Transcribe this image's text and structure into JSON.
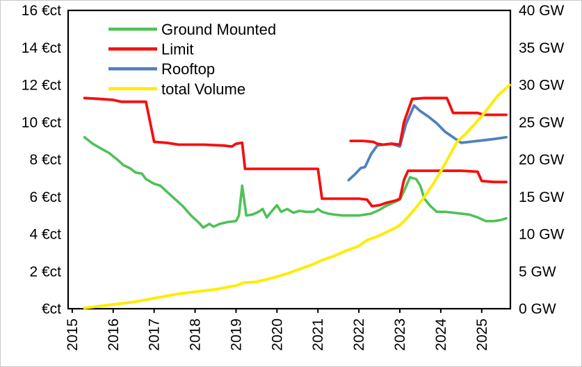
{
  "chart_data": {
    "type": "line",
    "title": "",
    "x_axis": {
      "min": 2014.9,
      "max": 2025.7,
      "ticks": [
        [
          2015,
          "2015"
        ],
        [
          2016,
          "2016"
        ],
        [
          2017,
          "2017"
        ],
        [
          2018,
          "2018"
        ],
        [
          2019,
          "2019"
        ],
        [
          2020,
          "2020"
        ],
        [
          2021,
          "2021"
        ],
        [
          2022,
          "2022"
        ],
        [
          2023,
          "2023"
        ],
        [
          2024,
          "2024"
        ],
        [
          2025,
          "2025"
        ]
      ]
    },
    "y_left": {
      "min": 0,
      "max": 16,
      "unit": "€ct",
      "ticks": [
        [
          0,
          "€ct"
        ],
        [
          2,
          "2 €ct"
        ],
        [
          4,
          "4 €ct"
        ],
        [
          6,
          "6 €ct"
        ],
        [
          8,
          "8 €ct"
        ],
        [
          10,
          "10 €ct"
        ],
        [
          12,
          "12 €ct"
        ],
        [
          14,
          "14 €ct"
        ],
        [
          16,
          "16 €ct"
        ]
      ]
    },
    "y_right": {
      "min": 0,
      "max": 40,
      "unit": "GW",
      "ticks": [
        [
          0,
          "0 GW"
        ],
        [
          5,
          "5 GW"
        ],
        [
          10,
          "10 GW"
        ],
        [
          15,
          "15 GW"
        ],
        [
          20,
          "20 GW"
        ],
        [
          25,
          "25 GW"
        ],
        [
          30,
          "30 GW"
        ],
        [
          35,
          "35 GW"
        ],
        [
          40,
          "40 GW"
        ]
      ]
    },
    "legend": [
      {
        "label": "Ground Mounted",
        "color": "#4ec157"
      },
      {
        "label": " Limit",
        "color": "#f50f0f"
      },
      {
        "label": "Rooftop",
        "color": "#4f81bd"
      },
      {
        "label": "total Volume",
        "color": "#ffec00"
      }
    ],
    "series": [
      {
        "name": "ground-mounted",
        "axis": "left",
        "color": "#4ec157",
        "width": 3.6,
        "points": [
          [
            2015.3,
            9.2
          ],
          [
            2015.5,
            8.85
          ],
          [
            2015.7,
            8.6
          ],
          [
            2015.9,
            8.35
          ],
          [
            2016.1,
            8.0
          ],
          [
            2016.25,
            7.7
          ],
          [
            2016.4,
            7.55
          ],
          [
            2016.55,
            7.3
          ],
          [
            2016.7,
            7.25
          ],
          [
            2016.8,
            6.95
          ],
          [
            2017.0,
            6.7
          ],
          [
            2017.15,
            6.6
          ],
          [
            2017.3,
            6.3
          ],
          [
            2017.5,
            5.9
          ],
          [
            2017.7,
            5.5
          ],
          [
            2017.9,
            5.0
          ],
          [
            2018.1,
            4.6
          ],
          [
            2018.2,
            4.35
          ],
          [
            2018.35,
            4.55
          ],
          [
            2018.45,
            4.4
          ],
          [
            2018.6,
            4.55
          ],
          [
            2018.8,
            4.65
          ],
          [
            2019.0,
            4.7
          ],
          [
            2019.07,
            5.0
          ],
          [
            2019.15,
            6.6
          ],
          [
            2019.25,
            5.0
          ],
          [
            2019.4,
            5.05
          ],
          [
            2019.55,
            5.2
          ],
          [
            2019.65,
            5.35
          ],
          [
            2019.75,
            4.9
          ],
          [
            2019.9,
            5.3
          ],
          [
            2020.0,
            5.55
          ],
          [
            2020.1,
            5.2
          ],
          [
            2020.25,
            5.35
          ],
          [
            2020.4,
            5.15
          ],
          [
            2020.55,
            5.25
          ],
          [
            2020.7,
            5.2
          ],
          [
            2020.9,
            5.2
          ],
          [
            2021.0,
            5.35
          ],
          [
            2021.1,
            5.2
          ],
          [
            2021.25,
            5.1
          ],
          [
            2021.4,
            5.05
          ],
          [
            2021.6,
            5.0
          ],
          [
            2021.8,
            5.0
          ],
          [
            2022.0,
            5.0
          ],
          [
            2022.15,
            5.05
          ],
          [
            2022.3,
            5.1
          ],
          [
            2022.5,
            5.3
          ],
          [
            2022.65,
            5.5
          ],
          [
            2022.8,
            5.65
          ],
          [
            2023.0,
            5.85
          ],
          [
            2023.1,
            6.3
          ],
          [
            2023.25,
            7.05
          ],
          [
            2023.4,
            6.95
          ],
          [
            2023.5,
            6.6
          ],
          [
            2023.6,
            5.9
          ],
          [
            2023.75,
            5.5
          ],
          [
            2023.9,
            5.2
          ],
          [
            2024.1,
            5.2
          ],
          [
            2024.3,
            5.15
          ],
          [
            2024.5,
            5.1
          ],
          [
            2024.7,
            5.05
          ],
          [
            2024.9,
            4.9
          ],
          [
            2025.1,
            4.7
          ],
          [
            2025.3,
            4.7
          ],
          [
            2025.45,
            4.75
          ],
          [
            2025.6,
            4.85
          ]
        ]
      },
      {
        "name": "limit-ground",
        "axis": "left",
        "color": "#f50f0f",
        "width": 3.8,
        "points": [
          [
            2015.3,
            11.3
          ],
          [
            2015.7,
            11.25
          ],
          [
            2016.0,
            11.2
          ],
          [
            2016.2,
            11.1
          ],
          [
            2016.8,
            11.1
          ],
          [
            2017.0,
            8.95
          ],
          [
            2017.3,
            8.9
          ],
          [
            2017.6,
            8.8
          ],
          [
            2018.2,
            8.8
          ],
          [
            2018.7,
            8.75
          ],
          [
            2018.9,
            8.7
          ],
          [
            2019.0,
            8.85
          ],
          [
            2019.15,
            8.9
          ],
          [
            2019.22,
            7.5
          ],
          [
            2019.6,
            7.5
          ],
          [
            2020.3,
            7.5
          ],
          [
            2021.0,
            7.5
          ],
          [
            2021.1,
            5.9
          ],
          [
            2021.5,
            5.9
          ],
          [
            2022.0,
            5.9
          ],
          [
            2022.2,
            5.85
          ],
          [
            2022.32,
            5.5
          ],
          [
            2022.5,
            5.55
          ],
          [
            2022.7,
            5.7
          ],
          [
            2022.9,
            5.8
          ],
          [
            2023.0,
            5.9
          ],
          [
            2023.1,
            6.9
          ],
          [
            2023.2,
            7.4
          ],
          [
            2023.6,
            7.4
          ],
          [
            2024.0,
            7.4
          ],
          [
            2024.5,
            7.4
          ],
          [
            2024.9,
            7.35
          ],
          [
            2025.0,
            6.85
          ],
          [
            2025.3,
            6.8
          ],
          [
            2025.6,
            6.8
          ]
        ]
      },
      {
        "name": "rooftop",
        "axis": "left",
        "color": "#4f81bd",
        "width": 3.8,
        "points": [
          [
            2021.75,
            6.9
          ],
          [
            2021.9,
            7.2
          ],
          [
            2022.05,
            7.55
          ],
          [
            2022.15,
            7.6
          ],
          [
            2022.3,
            8.3
          ],
          [
            2022.45,
            8.75
          ],
          [
            2022.6,
            8.8
          ],
          [
            2022.8,
            8.85
          ],
          [
            2023.0,
            8.7
          ],
          [
            2023.15,
            9.9
          ],
          [
            2023.35,
            10.9
          ],
          [
            2023.5,
            10.6
          ],
          [
            2023.7,
            10.3
          ],
          [
            2023.9,
            9.95
          ],
          [
            2024.1,
            9.5
          ],
          [
            2024.3,
            9.2
          ],
          [
            2024.5,
            8.9
          ],
          [
            2024.7,
            8.95
          ],
          [
            2024.9,
            9.0
          ],
          [
            2025.1,
            9.05
          ],
          [
            2025.3,
            9.1
          ],
          [
            2025.45,
            9.15
          ],
          [
            2025.6,
            9.2
          ]
        ]
      },
      {
        "name": "limit-rooftop",
        "axis": "left",
        "color": "#f50f0f",
        "width": 3.8,
        "points": [
          [
            2021.8,
            9.0
          ],
          [
            2022.1,
            9.0
          ],
          [
            2022.35,
            8.95
          ],
          [
            2022.45,
            8.85
          ],
          [
            2022.6,
            8.8
          ],
          [
            2022.8,
            8.85
          ],
          [
            2023.0,
            8.8
          ],
          [
            2023.1,
            10.0
          ],
          [
            2023.3,
            11.25
          ],
          [
            2023.6,
            11.3
          ],
          [
            2024.0,
            11.3
          ],
          [
            2024.15,
            11.3
          ],
          [
            2024.3,
            10.5
          ],
          [
            2024.6,
            10.5
          ],
          [
            2024.9,
            10.5
          ],
          [
            2025.05,
            10.4
          ],
          [
            2025.3,
            10.4
          ],
          [
            2025.6,
            10.4
          ]
        ]
      },
      {
        "name": "total-volume",
        "axis": "right",
        "color": "#ffec00",
        "width": 4.0,
        "points": [
          [
            2015.3,
            0.1
          ],
          [
            2015.6,
            0.3
          ],
          [
            2015.9,
            0.5
          ],
          [
            2016.2,
            0.7
          ],
          [
            2016.5,
            0.9
          ],
          [
            2016.8,
            1.2
          ],
          [
            2017.0,
            1.4
          ],
          [
            2017.3,
            1.7
          ],
          [
            2017.6,
            2.0
          ],
          [
            2017.9,
            2.2
          ],
          [
            2018.2,
            2.4
          ],
          [
            2018.5,
            2.6
          ],
          [
            2018.8,
            2.9
          ],
          [
            2019.0,
            3.1
          ],
          [
            2019.2,
            3.5
          ],
          [
            2019.5,
            3.6
          ],
          [
            2019.8,
            4.0
          ],
          [
            2020.0,
            4.3
          ],
          [
            2020.3,
            4.8
          ],
          [
            2020.6,
            5.4
          ],
          [
            2020.9,
            6.0
          ],
          [
            2021.1,
            6.5
          ],
          [
            2021.4,
            7.1
          ],
          [
            2021.7,
            7.8
          ],
          [
            2022.0,
            8.4
          ],
          [
            2022.2,
            9.2
          ],
          [
            2022.5,
            9.8
          ],
          [
            2022.8,
            10.6
          ],
          [
            2023.0,
            11.2
          ],
          [
            2023.2,
            12.3
          ],
          [
            2023.4,
            13.6
          ],
          [
            2023.6,
            15.0
          ],
          [
            2023.8,
            16.6
          ],
          [
            2024.0,
            18.4
          ],
          [
            2024.2,
            20.4
          ],
          [
            2024.4,
            22.4
          ],
          [
            2024.6,
            23.4
          ],
          [
            2024.8,
            24.6
          ],
          [
            2025.0,
            25.8
          ],
          [
            2025.2,
            27.2
          ],
          [
            2025.4,
            28.6
          ],
          [
            2025.68,
            30.0
          ]
        ]
      }
    ]
  }
}
